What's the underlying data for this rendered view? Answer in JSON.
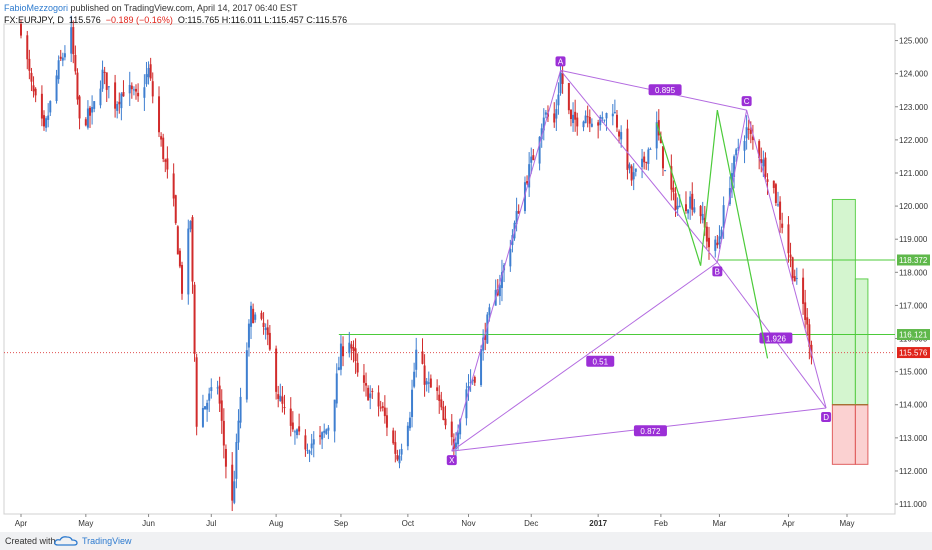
{
  "header": {
    "author": "FabioMezzogori",
    "published": " published on TradingView.com, April 14, 2017 06:40 EST"
  },
  "symbol": {
    "name": "FX:EURJPY, D",
    "last": "115.576",
    "change": "−0.189 (−0.16%)",
    "ohlc": "O:115.765 H:116.011 L:115.457 C:115.576"
  },
  "footer": {
    "created": "Created with",
    "brand": "TradingView"
  },
  "colors": {
    "up": "#3f7fd0",
    "down": "#d12b2b",
    "pattern": "#b36be0",
    "green": "#4ccb3a",
    "label_bg": "#9b2fd6"
  },
  "chart_data": {
    "type": "candlestick",
    "y_range": [
      110.7,
      125.5
    ],
    "y_ticks": [
      "111.000",
      "112.000",
      "113.000",
      "114.000",
      "115.000",
      "116.000",
      "117.000",
      "118.000",
      "119.000",
      "120.000",
      "121.000",
      "122.000",
      "123.000",
      "124.000",
      "125.000"
    ],
    "x_labels": [
      {
        "label": "Apr",
        "date": "2016-04-01"
      },
      {
        "label": "May",
        "date": "2016-05-02"
      },
      {
        "label": "Jun",
        "date": "2016-06-01"
      },
      {
        "label": "Jul",
        "date": "2016-07-01"
      },
      {
        "label": "Aug",
        "date": "2016-08-01"
      },
      {
        "label": "Sep",
        "date": "2016-09-01"
      },
      {
        "label": "Oct",
        "date": "2016-10-03"
      },
      {
        "label": "Nov",
        "date": "2016-11-01"
      },
      {
        "label": "Dec",
        "date": "2016-12-01"
      },
      {
        "label": "2017",
        "date": "2017-01-02"
      },
      {
        "label": "Feb",
        "date": "2017-02-01"
      },
      {
        "label": "Mar",
        "date": "2017-03-01"
      },
      {
        "label": "Apr",
        "date": "2017-04-03"
      },
      {
        "label": "May",
        "date": "2017-05-01"
      }
    ],
    "path_points": [
      {
        "date": "2016-04-01",
        "price": 125.4
      },
      {
        "date": "2016-04-06",
        "price": 123.6
      },
      {
        "date": "2016-04-12",
        "price": 122.2
      },
      {
        "date": "2016-04-19",
        "price": 124.2
      },
      {
        "date": "2016-04-25",
        "price": 125.2
      },
      {
        "date": "2016-04-29",
        "price": 122.5
      },
      {
        "date": "2016-05-05",
        "price": 122.8
      },
      {
        "date": "2016-05-10",
        "price": 124.0
      },
      {
        "date": "2016-05-16",
        "price": 123.1
      },
      {
        "date": "2016-05-21",
        "price": 123.6
      },
      {
        "date": "2016-05-27",
        "price": 123.2
      },
      {
        "date": "2016-06-01",
        "price": 124.1
      },
      {
        "date": "2016-06-06",
        "price": 122.2
      },
      {
        "date": "2016-06-13",
        "price": 120.0
      },
      {
        "date": "2016-06-17",
        "price": 117.5
      },
      {
        "date": "2016-06-21",
        "price": 119.6
      },
      {
        "date": "2016-06-24",
        "price": 113.5
      },
      {
        "date": "2016-06-28",
        "price": 114.0
      },
      {
        "date": "2016-07-04",
        "price": 114.6
      },
      {
        "date": "2016-07-08",
        "price": 112.2
      },
      {
        "date": "2016-07-11",
        "price": 111.0
      },
      {
        "date": "2016-07-14",
        "price": 113.5
      },
      {
        "date": "2016-07-20",
        "price": 116.8
      },
      {
        "date": "2016-07-27",
        "price": 116.2
      },
      {
        "date": "2016-08-02",
        "price": 114.3
      },
      {
        "date": "2016-08-08",
        "price": 113.2
      },
      {
        "date": "2016-08-15",
        "price": 112.8
      },
      {
        "date": "2016-08-22",
        "price": 112.9
      },
      {
        "date": "2016-08-27",
        "price": 113.5
      },
      {
        "date": "2016-09-01",
        "price": 115.6
      },
      {
        "date": "2016-09-05",
        "price": 116.0
      },
      {
        "date": "2016-09-10",
        "price": 114.6
      },
      {
        "date": "2016-09-15",
        "price": 114.3
      },
      {
        "date": "2016-09-21",
        "price": 113.8
      },
      {
        "date": "2016-09-28",
        "price": 112.4
      },
      {
        "date": "2016-10-04",
        "price": 113.8
      },
      {
        "date": "2016-10-07",
        "price": 115.6
      },
      {
        "date": "2016-10-12",
        "price": 114.6
      },
      {
        "date": "2016-10-17",
        "price": 114.3
      },
      {
        "date": "2016-10-21",
        "price": 113.2
      },
      {
        "date": "2016-10-25",
        "price": 112.8
      },
      {
        "date": "2016-10-31",
        "price": 114.5
      },
      {
        "date": "2016-11-05",
        "price": 115.0
      },
      {
        "date": "2016-11-10",
        "price": 116.5
      },
      {
        "date": "2016-11-15",
        "price": 117.5
      },
      {
        "date": "2016-11-20",
        "price": 118.6
      },
      {
        "date": "2016-11-27",
        "price": 120.5
      },
      {
        "date": "2016-12-02",
        "price": 121.5
      },
      {
        "date": "2016-12-07",
        "price": 122.8
      },
      {
        "date": "2016-12-12",
        "price": 122.5
      },
      {
        "date": "2016-12-15",
        "price": 124.0
      },
      {
        "date": "2016-12-20",
        "price": 122.5
      },
      {
        "date": "2016-12-27",
        "price": 122.8
      },
      {
        "date": "2017-01-03",
        "price": 122.5
      },
      {
        "date": "2017-01-09",
        "price": 123.0
      },
      {
        "date": "2017-01-13",
        "price": 122.0
      },
      {
        "date": "2017-01-18",
        "price": 120.8
      },
      {
        "date": "2017-01-23",
        "price": 121.2
      },
      {
        "date": "2017-01-30",
        "price": 122.4
      },
      {
        "date": "2017-02-03",
        "price": 121.0
      },
      {
        "date": "2017-02-07",
        "price": 120.2
      },
      {
        "date": "2017-02-10",
        "price": 119.9
      },
      {
        "date": "2017-02-15",
        "price": 120.2
      },
      {
        "date": "2017-02-20",
        "price": 119.8
      },
      {
        "date": "2017-02-24",
        "price": 118.8
      },
      {
        "date": "2017-02-28",
        "price": 118.8
      },
      {
        "date": "2017-03-05",
        "price": 120.5
      },
      {
        "date": "2017-03-10",
        "price": 121.8
      },
      {
        "date": "2017-03-14",
        "price": 122.3
      },
      {
        "date": "2017-03-20",
        "price": 121.6
      },
      {
        "date": "2017-03-27",
        "price": 120.5
      },
      {
        "date": "2017-04-01",
        "price": 119.2
      },
      {
        "date": "2017-04-06",
        "price": 117.8
      },
      {
        "date": "2017-04-10",
        "price": 117.0
      },
      {
        "date": "2017-04-14",
        "price": 115.6
      }
    ],
    "xabcd_pattern": {
      "points": [
        {
          "label": "X",
          "date": "2016-10-24",
          "price": 112.6
        },
        {
          "label": "A",
          "date": "2016-12-15",
          "price": 124.1
        },
        {
          "label": "B",
          "date": "2017-02-28",
          "price": 118.3
        },
        {
          "label": "C",
          "date": "2017-03-14",
          "price": 122.9
        },
        {
          "label": "D",
          "date": "2017-04-21",
          "price": 113.9
        }
      ],
      "ratios": [
        {
          "value": "0.895",
          "date": "2017-02-03",
          "price": 123.5
        },
        {
          "value": "0.51",
          "date": "2017-01-03",
          "price": 115.3
        },
        {
          "value": "1.926",
          "date": "2017-03-28",
          "price": 116.0
        },
        {
          "value": "0.872",
          "date": "2017-01-27",
          "price": 113.2
        }
      ]
    },
    "abcd_green": [
      {
        "date": "2017-01-30",
        "price": 122.5
      },
      {
        "date": "2017-02-20",
        "price": 118.2
      },
      {
        "date": "2017-02-28",
        "price": 122.9
      },
      {
        "date": "2017-03-24",
        "price": 115.4
      }
    ],
    "horizontal_lines": [
      {
        "price": 118.372,
        "start": "2017-02-28",
        "label": "118.372"
      },
      {
        "price": 116.121,
        "start": "2016-08-31",
        "label": "116.121"
      }
    ],
    "current_price": {
      "price": 115.576,
      "label": "115.576"
    },
    "positions": [
      {
        "start": "2017-04-24",
        "end": "2017-05-05",
        "entry": 114.0,
        "target": 120.2,
        "stop": 112.2
      },
      {
        "start": "2017-05-05",
        "end": "2017-05-11",
        "entry": 114.0,
        "target": 117.8,
        "stop": 112.2
      }
    ]
  }
}
